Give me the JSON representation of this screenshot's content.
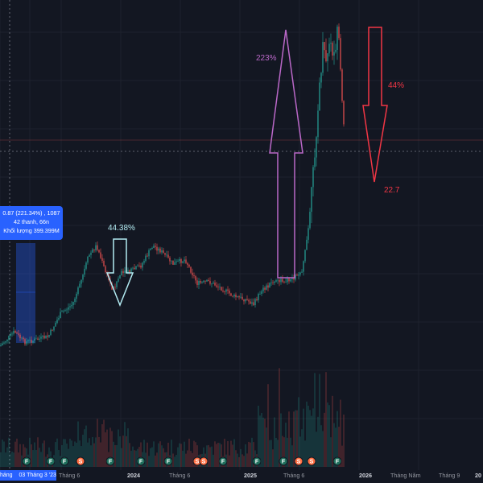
{
  "tooltip": {
    "line1": "0.87 (221.34%) , 1087",
    "line2": "42 thanh, 66n",
    "line3": "Khối lượng 399.399M"
  },
  "date_badge": {
    "prefix": "háng",
    "date": "03 Tháng 3 '23"
  },
  "x_axis": {
    "labels": [
      "Tháng 6",
      "2024",
      "Tháng 6",
      "2025",
      "Tháng 6",
      "2026",
      "Tháng Năm",
      "Tháng 9",
      "20"
    ]
  },
  "annotations": {
    "drop_2024_pct": "44.38%",
    "rise_2025_pct": "223%",
    "drop_2025_pct": "44%",
    "target_price": "22.7"
  },
  "markers": {
    "event_glyphs": [
      "F",
      "S"
    ]
  },
  "colors": {
    "background": "#131722",
    "up": "#26a69a",
    "down": "#ef5350",
    "drop_arrow_2024": "#b2ebf2",
    "rise_arrow": "#ba68c8",
    "drop_arrow_2025": "#f23645",
    "selection": "#2962ff"
  }
}
